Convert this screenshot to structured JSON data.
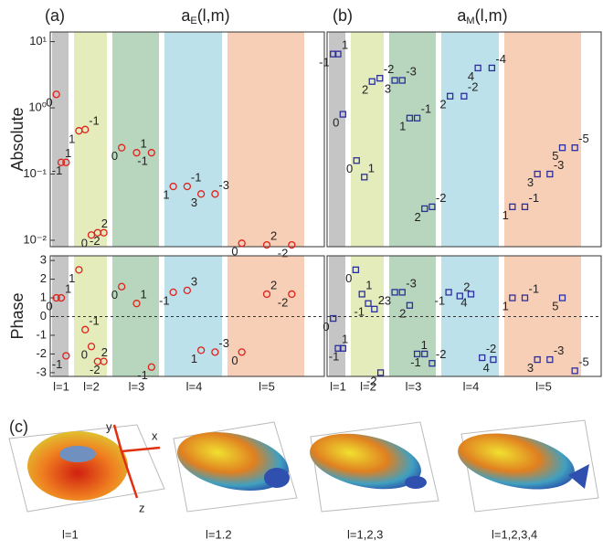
{
  "chart_data": [
    {
      "type": "scatter",
      "panel": "(a)",
      "title": {
        "main": "a",
        "sub": "E",
        "rest": "(l,m)"
      },
      "y_label": "Absolute",
      "log_scale": true,
      "ylim": [
        0.008,
        14
      ],
      "yticks": [
        {
          "value": 0.01,
          "label": "10⁻²"
        },
        {
          "value": 0.1,
          "label": "10⁻¹"
        },
        {
          "value": 1,
          "label": "10⁰"
        },
        {
          "value": 10,
          "label": "10¹"
        }
      ],
      "marker": "circle",
      "color": "#e0201b",
      "band_colors": [
        "#8c8c8c",
        "#c9d97a",
        "#6fae7c",
        "#7cc3d6",
        "#f0a070"
      ],
      "groups": [
        {
          "labels": [
            "0",
            "1",
            "-1"
          ],
          "values": [
            1.6,
            0.15,
            0.15
          ]
        },
        {
          "labels": [
            "1",
            "-1",
            "0",
            "2",
            "-2"
          ],
          "values": [
            0.45,
            0.47,
            0.012,
            0.013,
            0.013
          ]
        },
        {
          "labels": [
            "0",
            "1",
            "-1"
          ],
          "values": [
            0.25,
            0.21,
            0.21
          ]
        },
        {
          "labels": [
            "1",
            "-1",
            "3",
            "-3"
          ],
          "values": [
            0.065,
            0.065,
            0.05,
            0.05
          ]
        },
        {
          "labels": [
            "0",
            "2",
            "-2"
          ],
          "values": [
            0.009,
            0.0085,
            0.0085
          ]
        }
      ]
    },
    {
      "type": "scatter",
      "y_label": "Phase",
      "ylim": [
        -3.2,
        3.25
      ],
      "yticks": [
        -3,
        -2,
        -1,
        0,
        1,
        2,
        3
      ],
      "zero_line": true,
      "marker": "circle",
      "color": "#e0201b",
      "band_colors": [
        "#8c8c8c",
        "#c9d97a",
        "#6fae7c",
        "#7cc3d6",
        "#f0a070"
      ],
      "categories": [
        "l=1",
        "l=2",
        "l=3",
        "l=4",
        "l=5"
      ],
      "groups": [
        {
          "labels": [
            "0",
            "1",
            "-1"
          ],
          "values": [
            1.0,
            1.0,
            -2.1
          ]
        },
        {
          "labels": [
            "1",
            "-1",
            "0",
            "2",
            "-2"
          ],
          "values": [
            2.5,
            -0.7,
            -1.6,
            -2.4,
            -2.4
          ]
        },
        {
          "labels": [
            "0",
            "1",
            "-1"
          ],
          "values": [
            1.6,
            0.7,
            -2.7
          ]
        },
        {
          "labels": [
            "-1",
            "3",
            "1",
            "-3"
          ],
          "values": [
            1.3,
            1.4,
            -1.8,
            -1.9
          ]
        },
        {
          "labels": [
            "0",
            "2",
            "-2"
          ],
          "values": [
            -1.9,
            1.2,
            1.2
          ]
        }
      ]
    },
    {
      "type": "scatter",
      "panel": "(b)",
      "title": {
        "main": "a",
        "sub": "M",
        "rest": "(l,m)"
      },
      "log_scale": true,
      "ylim": [
        0.008,
        14
      ],
      "marker": "square",
      "color": "#2b2f9e",
      "band_colors": [
        "#8c8c8c",
        "#c9d97a",
        "#6fae7c",
        "#7cc3d6",
        "#f0a070"
      ],
      "groups": [
        {
          "labels": [
            "-1",
            "1",
            "0"
          ],
          "values": [
            6.5,
            6.5,
            0.8
          ]
        },
        {
          "labels": [
            "0",
            "1",
            "2",
            "-2"
          ],
          "values": [
            0.16,
            0.09,
            2.5,
            2.8
          ]
        },
        {
          "labels": [
            "3",
            "-3",
            "1",
            "-1",
            "2",
            "-2"
          ],
          "values": [
            2.6,
            2.6,
            0.7,
            0.7,
            0.03,
            0.032
          ]
        },
        {
          "labels": [
            "2",
            "-2",
            "4",
            "-4"
          ],
          "values": [
            1.5,
            1.5,
            4,
            4
          ]
        },
        {
          "labels": [
            "1",
            "-1",
            "3",
            "-3",
            "5",
            "-5"
          ],
          "values": [
            0.032,
            0.032,
            0.1,
            0.1,
            0.25,
            0.25
          ]
        }
      ]
    },
    {
      "type": "scatter",
      "ylim": [
        -3.2,
        3.25
      ],
      "zero_line": true,
      "marker": "square",
      "color": "#2b2f9e",
      "band_colors": [
        "#8c8c8c",
        "#c9d97a",
        "#6fae7c",
        "#7cc3d6",
        "#f0a070"
      ],
      "categories": [
        "l=1",
        "l=2",
        "l=3",
        "l=4",
        "l=5"
      ],
      "groups": [
        {
          "labels": [
            "0",
            "1",
            "-1"
          ],
          "values": [
            -0.1,
            -1.7,
            -1.7
          ]
        },
        {
          "labels": [
            "0",
            "1",
            "-1",
            "2",
            "-2"
          ],
          "values": [
            2.5,
            1.2,
            0.7,
            0.4,
            -3.0
          ]
        },
        {
          "labels": [
            "3",
            "-3",
            "2",
            "1",
            "-1",
            "-2"
          ],
          "values": [
            1.3,
            1.3,
            0.6,
            -2.0,
            -2.0,
            -2.5
          ]
        },
        {
          "labels": [
            "-1",
            "2",
            "4",
            "-2",
            "4"
          ],
          "values": [
            1.3,
            1.1,
            1.2,
            -2.2,
            -2.3
          ]
        },
        {
          "labels": [
            "1",
            "-1",
            "3",
            "-3",
            "5",
            "-5"
          ],
          "values": [
            1.0,
            1.0,
            -2.3,
            -2.3,
            1.0,
            -2.9
          ]
        }
      ]
    }
  ],
  "panel_c": {
    "label": "(c)",
    "axes": [
      "x",
      "y",
      "z"
    ],
    "captions": [
      "l=1",
      "l=1.2",
      "l=1,2,3",
      "l=1,2,3,4"
    ]
  }
}
